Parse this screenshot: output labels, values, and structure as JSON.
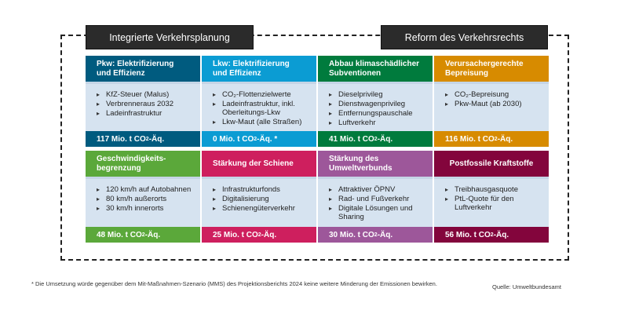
{
  "groups": [
    {
      "label": "Integrierte Verkehrsplanung"
    },
    {
      "label": "Reform des Verkehrsrechts"
    }
  ],
  "colors": {
    "pkw": "#005b7f",
    "lkw": "#0b9cd3",
    "subventionen": "#007b3d",
    "bepreisung": "#d78b00",
    "geschwindigkeit": "#5ba83a",
    "schiene": "#ce1f5e",
    "umweltverbund": "#9d579a",
    "postfossil": "#83053c",
    "body_bg": "#d6e3f0",
    "group_header_bg": "#2b2b2b"
  },
  "cards": [
    {
      "title": "Pkw: Elektrifizierung und Effizienz",
      "items": [
        "KfZ-Steuer (Malus)",
        "Verbrenneraus 2032",
        "Ladeinfrastruktur"
      ],
      "value": "117 Mio. t CO",
      "value_sub": "2",
      "value_suffix": "-Äq."
    },
    {
      "title": "Lkw: Elektrifizierung und Effizienz",
      "items": [
        "CO₂-Flottenzielwerte",
        "Ladeinfrastruktur, inkl. Oberleitungs-Lkw",
        "Lkw-Maut (alle Straßen)"
      ],
      "value": "0 Mio. t CO",
      "value_sub": "2",
      "value_suffix": "-Äq. *"
    },
    {
      "title": "Abbau klimaschädlicher Subventionen",
      "items": [
        "Dieselprivileg",
        "Dienstwagenprivileg",
        "Entfernungspauschale",
        "Luftverkehr"
      ],
      "value": "41 Mio. t CO",
      "value_sub": "2",
      "value_suffix": "-Äq."
    },
    {
      "title": "Verursachergerechte Bepreisung",
      "items": [
        "CO₂-Bepreisung",
        "Pkw-Maut (ab 2030)"
      ],
      "value": "116 Mio. t CO",
      "value_sub": "2",
      "value_suffix": "-Äq."
    },
    {
      "title": "Geschwindigkeits-begrenzung",
      "items": [
        "120 km/h auf Autobahnen",
        "80 km/h außerorts",
        "30 km/h innerorts"
      ],
      "value": "48 Mio. t CO",
      "value_sub": "2",
      "value_suffix": "-Äq."
    },
    {
      "title": "Stärkung der Schiene",
      "items": [
        "Infrastrukturfonds",
        "Digitalisierung",
        "Schienengüterverkehr"
      ],
      "value": "25 Mio. t CO",
      "value_sub": "2",
      "value_suffix": "-Äq."
    },
    {
      "title": "Stärkung des Umweltverbunds",
      "items": [
        "Attraktiver ÖPNV",
        "Rad- und Fußverkehr",
        "Digitale Lösungen und Sharing"
      ],
      "value": "30 Mio. t CO",
      "value_sub": "2",
      "value_suffix": "-Äq."
    },
    {
      "title": "Postfossile Kraftstoffe",
      "items": [
        "Treibhausgasquote",
        "PtL-Quote für den Luftverkehr"
      ],
      "value": "56 Mio. t CO",
      "value_sub": "2",
      "value_suffix": "-Äq."
    }
  ],
  "footnote": "* Die Umsetzung würde gegenüber dem Mit-Maßnahmen-Szenario (MMS) des Projektionsberichts 2024 keine weitere Minderung der Emissionen bewirken.",
  "source": "Quelle: Umweltbundesamt"
}
